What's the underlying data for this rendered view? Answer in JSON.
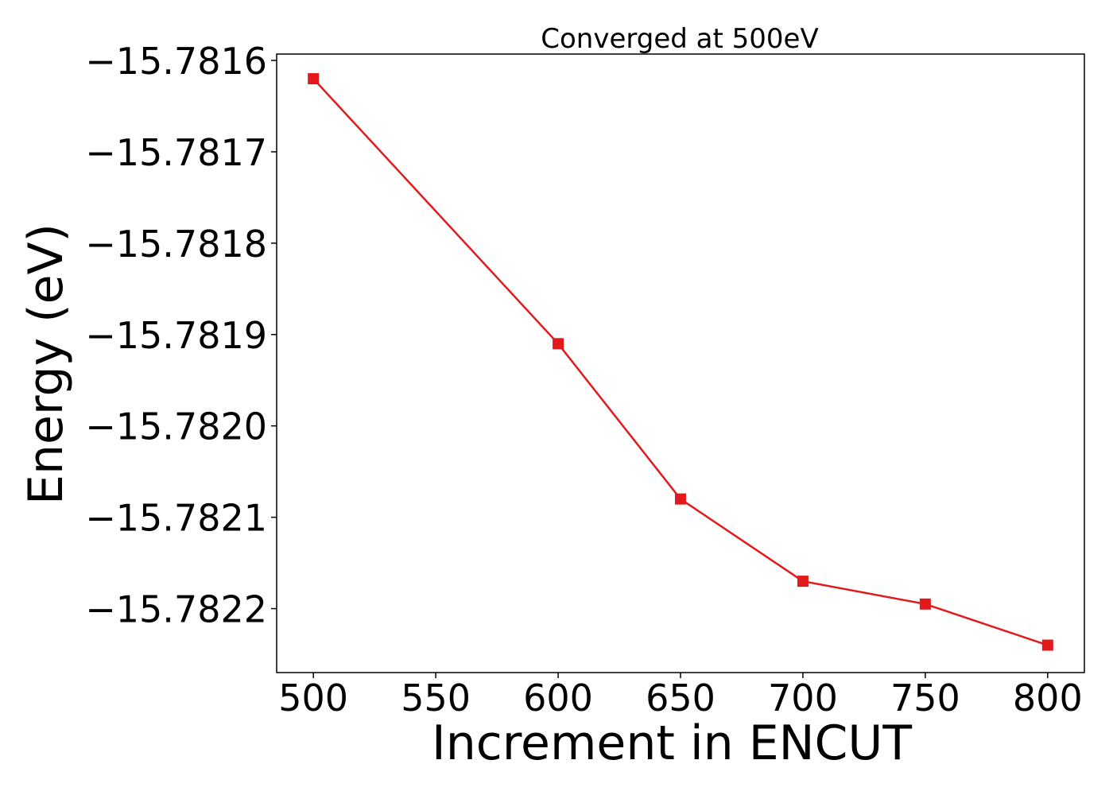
{
  "chart_data": {
    "type": "line",
    "title": "Converged at 500eV",
    "xlabel": "Increment in ENCUT",
    "ylabel": "Energy (eV)",
    "x": [
      500,
      600,
      650,
      700,
      750,
      800
    ],
    "series": [
      {
        "values": [
          -15.78162,
          -15.78191,
          -15.78208,
          -15.78217,
          -15.782195,
          -15.78224
        ],
        "color": "#e31a1c",
        "marker": "square"
      }
    ],
    "xlim": [
      485,
      815
    ],
    "ylim": [
      -15.78227,
      -15.781593
    ],
    "xticks": [
      500,
      550,
      600,
      650,
      700,
      750,
      800
    ],
    "xtick_labels": [
      "500",
      "550",
      "600",
      "650",
      "700",
      "750",
      "800"
    ],
    "yticks": [
      -15.7816,
      -15.7817,
      -15.7818,
      -15.7819,
      -15.782,
      -15.7821,
      -15.7822
    ],
    "ytick_labels": [
      "−15.7816",
      "−15.7817",
      "−15.7818",
      "−15.7819",
      "−15.7820",
      "−15.7821",
      "−15.7822"
    ],
    "grid": false,
    "legend": false
  }
}
